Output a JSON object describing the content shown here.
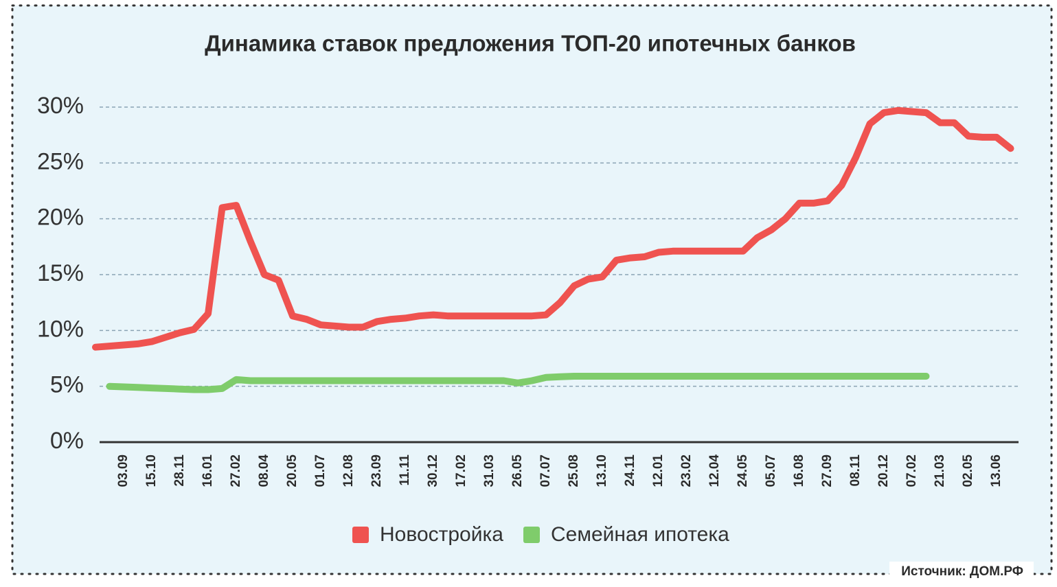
{
  "chart_data": {
    "type": "line",
    "title": "Динамика ставок предложения ТОП-20 ипотечных банков",
    "source": "Источник: ДОМ.РФ",
    "categories": [
      null,
      null,
      "03.09",
      null,
      "15.10",
      null,
      "28.11",
      null,
      "16.01",
      null,
      "27.02",
      null,
      "08.04",
      null,
      "20.05",
      null,
      "01.07",
      null,
      "12.08",
      null,
      "23.09",
      null,
      "11.11",
      null,
      "30.12",
      null,
      "17.02",
      null,
      "31.03",
      null,
      "26.05",
      null,
      "07.07",
      null,
      "25.08",
      null,
      "13.10",
      null,
      "24.11",
      null,
      "12.01",
      null,
      "23.02",
      null,
      "12.04",
      null,
      "24.05",
      null,
      "05.07",
      null,
      "16.08",
      null,
      "27.09",
      null,
      "08.11",
      null,
      "20.12",
      null,
      "07.02",
      null,
      "21.03",
      null,
      "02.05",
      null,
      "13.06",
      null
    ],
    "series": [
      {
        "name": "Новостройка",
        "color": "#ef5350",
        "values": [
          8.5,
          8.6,
          8.7,
          8.8,
          9.0,
          9.4,
          9.8,
          10.1,
          11.5,
          21.0,
          21.2,
          18.0,
          15.0,
          14.5,
          11.3,
          11.0,
          10.5,
          10.4,
          10.3,
          10.3,
          10.8,
          11.0,
          11.1,
          11.3,
          11.4,
          11.3,
          11.3,
          11.3,
          11.3,
          11.3,
          11.3,
          11.3,
          11.4,
          12.5,
          14.0,
          14.6,
          14.8,
          16.3,
          16.5,
          16.6,
          17.0,
          17.1,
          17.1,
          17.1,
          17.1,
          17.1,
          17.1,
          18.3,
          19.0,
          20.0,
          21.4,
          21.4,
          21.6,
          23.0,
          25.5,
          28.5,
          29.5,
          29.7,
          29.6,
          29.5,
          28.6,
          28.6,
          27.4,
          27.3,
          27.3,
          26.3
        ]
      },
      {
        "name": "Семейная ипотека",
        "color": "#7fcc6b",
        "values": [
          null,
          5.0,
          4.95,
          4.9,
          4.85,
          4.8,
          4.75,
          4.7,
          4.7,
          4.8,
          5.6,
          5.5,
          5.5,
          5.5,
          5.5,
          5.5,
          5.5,
          5.5,
          5.5,
          5.5,
          5.5,
          5.5,
          5.5,
          5.5,
          5.5,
          5.5,
          5.5,
          5.5,
          5.5,
          5.5,
          5.3,
          5.5,
          5.8,
          5.85,
          5.9,
          5.9,
          5.9,
          5.9,
          5.9,
          5.9,
          5.9,
          5.9,
          5.9,
          5.9,
          5.9,
          5.9,
          5.9,
          5.9,
          5.9,
          5.9,
          5.9,
          5.9,
          5.9,
          5.9,
          5.9,
          5.9,
          5.9,
          5.9,
          5.9,
          5.9,
          null,
          null,
          null,
          null,
          null,
          null
        ]
      }
    ],
    "ylim": [
      0,
      30
    ],
    "yticks": [
      {
        "value": 0,
        "label": "0%"
      },
      {
        "value": 5,
        "label": "5%"
      },
      {
        "value": 10,
        "label": "10%"
      },
      {
        "value": 15,
        "label": "15%"
      },
      {
        "value": 20,
        "label": "20%"
      },
      {
        "value": 25,
        "label": "25%"
      },
      {
        "value": 30,
        "label": "30%"
      }
    ],
    "grid": true,
    "legend": "bottom"
  }
}
